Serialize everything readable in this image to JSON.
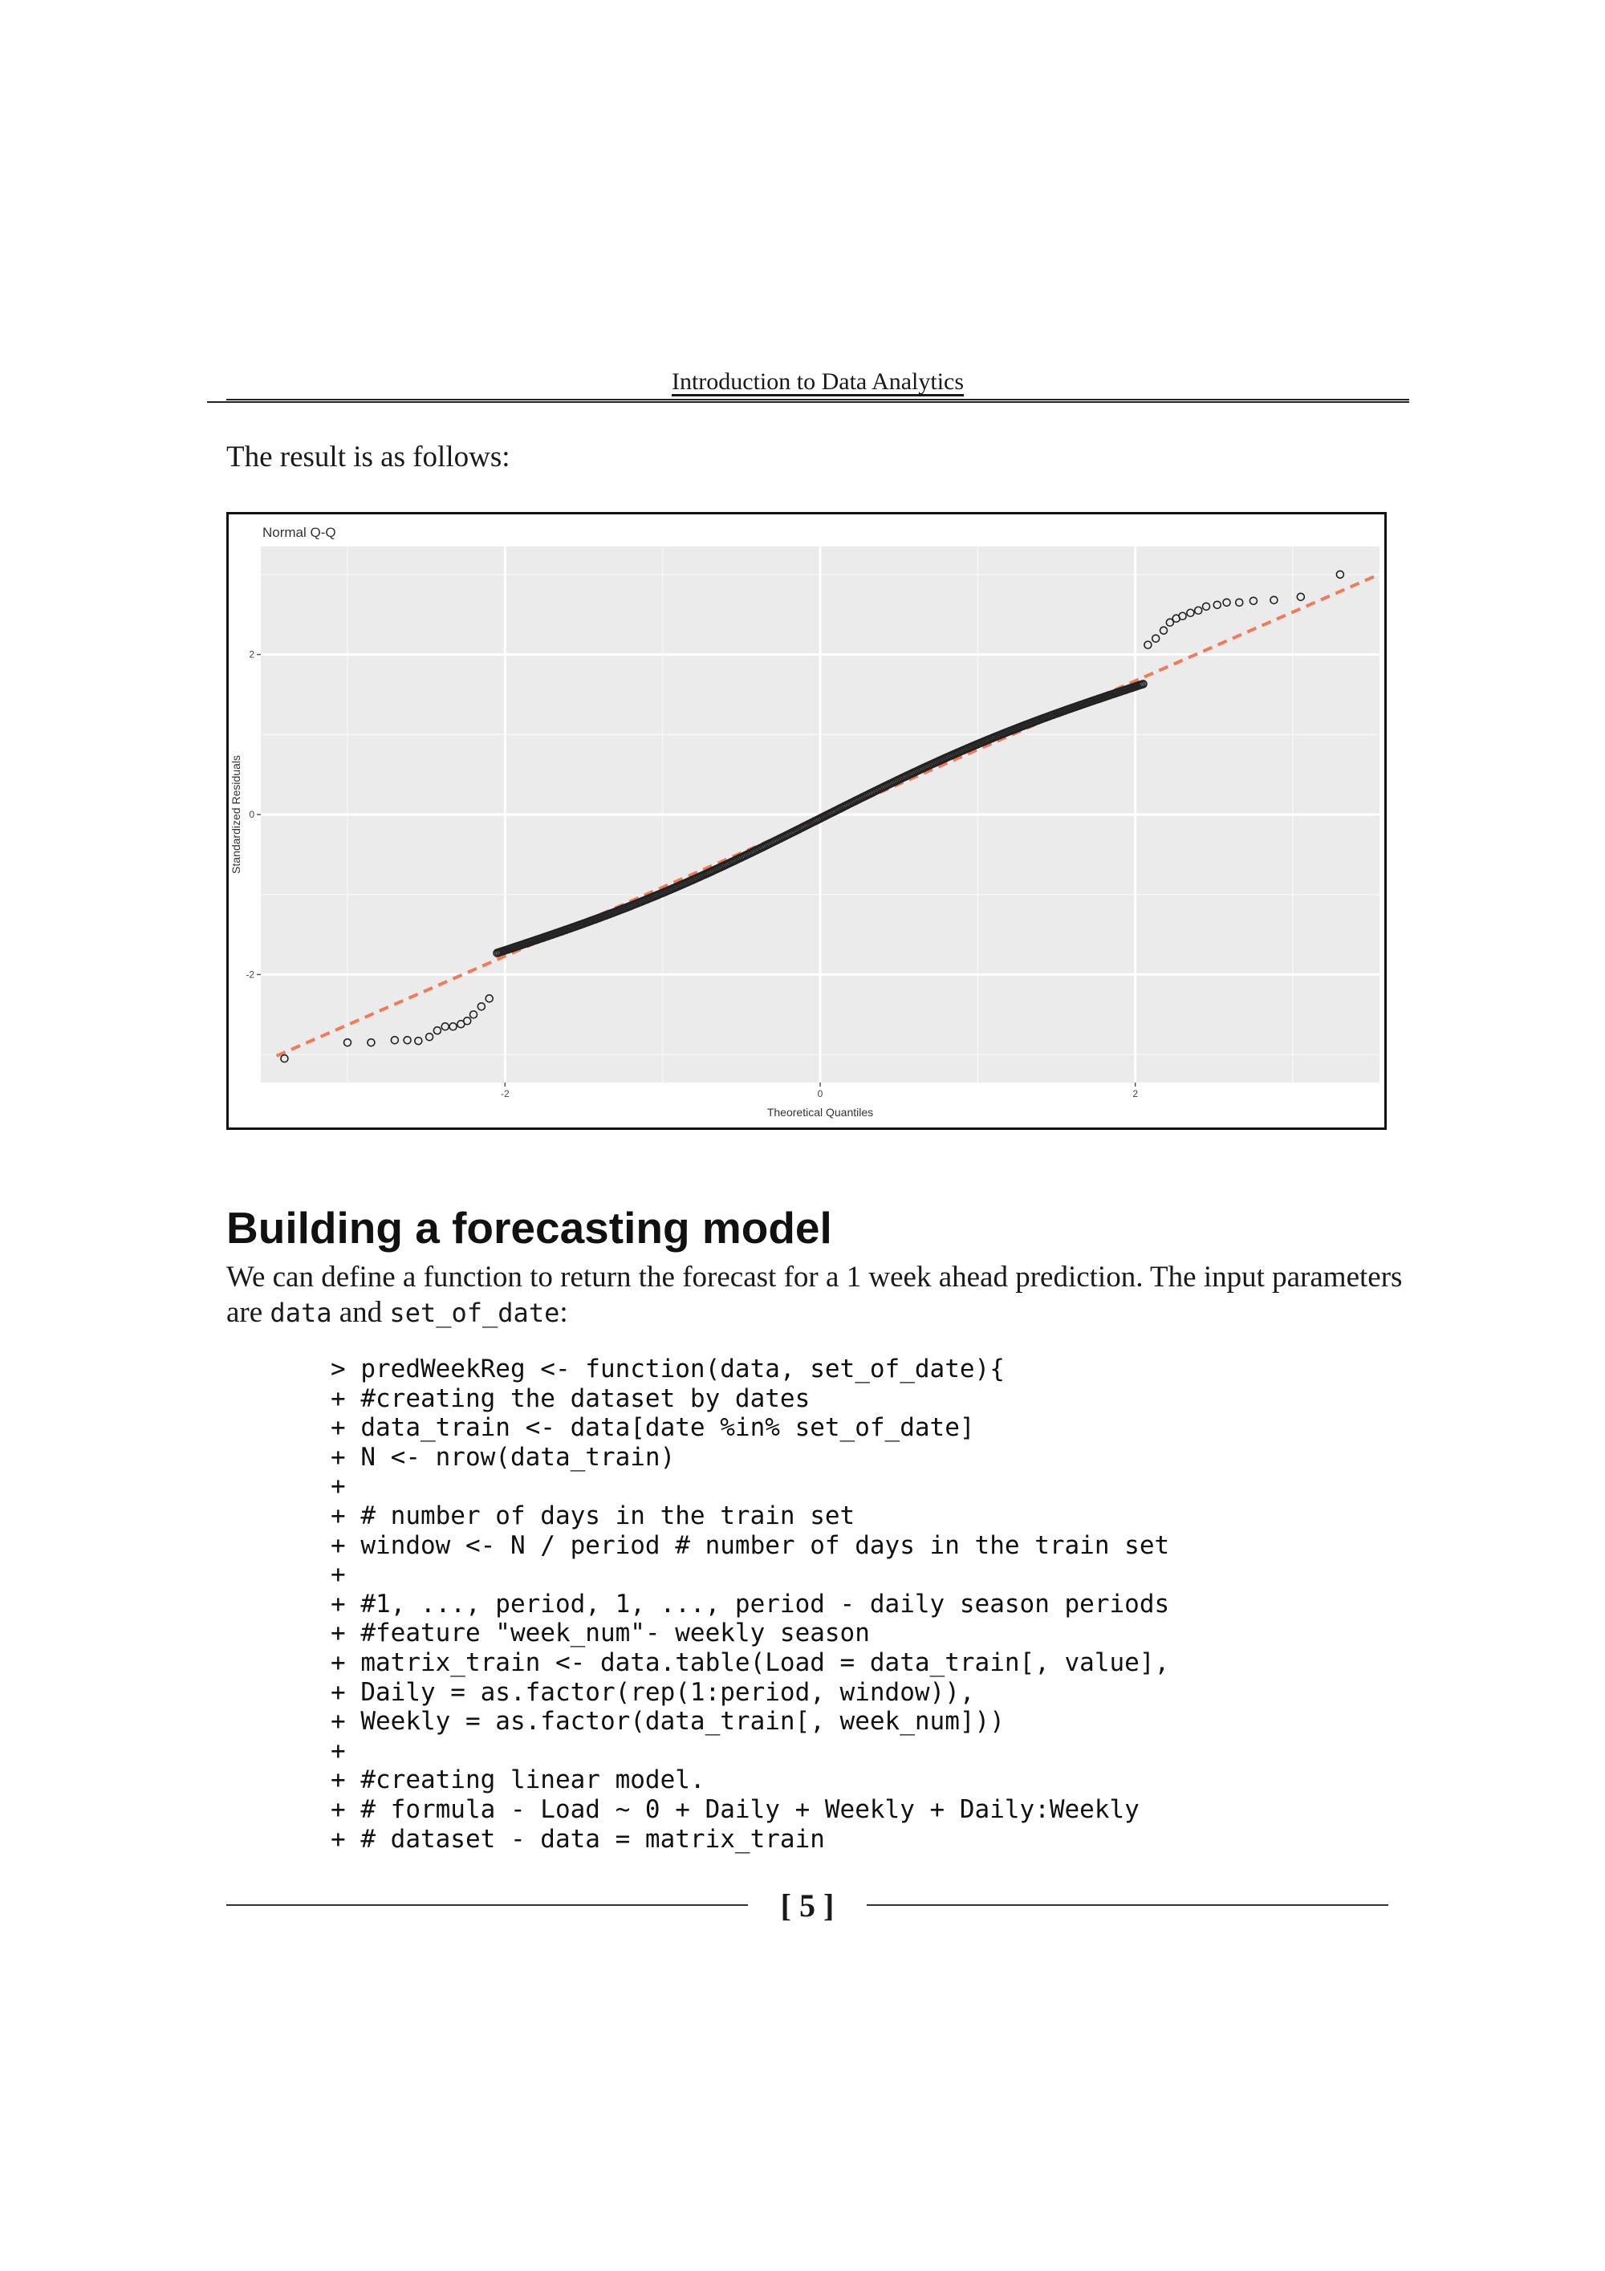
{
  "header": {
    "title": "Introduction to Data Analytics"
  },
  "intro_text": "The result is as follows:",
  "chart_data": {
    "type": "scatter",
    "title": "Normal Q-Q",
    "xlabel": "Theoretical Quantiles",
    "ylabel": "Standardized Residuals",
    "xlim": [
      -3.55,
      3.55
    ],
    "ylim": [
      -3.35,
      3.35
    ],
    "x_ticks": [
      -2,
      0,
      2
    ],
    "y_ticks": [
      -2,
      0,
      2
    ],
    "grid": true,
    "reference_line": {
      "intercept": -0.05,
      "slope": 0.86,
      "color": "#f07a5a"
    },
    "point_color": "#222222",
    "background": "#ebebeb",
    "tail_points": [
      [
        -3.4,
        -3.05
      ],
      [
        -3.0,
        -2.85
      ],
      [
        -2.85,
        -2.85
      ],
      [
        -2.7,
        -2.82
      ],
      [
        -2.62,
        -2.82
      ],
      [
        -2.55,
        -2.83
      ],
      [
        -2.48,
        -2.78
      ],
      [
        -2.43,
        -2.7
      ],
      [
        -2.38,
        -2.65
      ],
      [
        -2.33,
        -2.65
      ],
      [
        -2.28,
        -2.62
      ],
      [
        -2.24,
        -2.58
      ],
      [
        -2.2,
        -2.5
      ],
      [
        -2.15,
        -2.4
      ],
      [
        -2.1,
        -2.3
      ],
      [
        2.08,
        2.12
      ],
      [
        2.13,
        2.2
      ],
      [
        2.18,
        2.3
      ],
      [
        2.22,
        2.4
      ],
      [
        2.26,
        2.45
      ],
      [
        2.3,
        2.48
      ],
      [
        2.35,
        2.52
      ],
      [
        2.4,
        2.55
      ],
      [
        2.45,
        2.6
      ],
      [
        2.52,
        2.62
      ],
      [
        2.58,
        2.65
      ],
      [
        2.66,
        2.65
      ],
      [
        2.75,
        2.67
      ],
      [
        2.88,
        2.68
      ],
      [
        3.05,
        2.72
      ],
      [
        3.3,
        3.0
      ]
    ],
    "body_n": 420
  },
  "section_title": "Building a forecasting model",
  "paragraph": {
    "text1": "We can define a function to return the forecast for a 1 week ahead prediction. The input parameters are ",
    "code1": "data",
    "text2": " and ",
    "code2": "set_of_date",
    "text3": ":"
  },
  "code_lines": [
    "> predWeekReg <- function(data, set_of_date){",
    "+ #creating the dataset by dates",
    "+ data_train <- data[date %in% set_of_date]",
    "+ N <- nrow(data_train)",
    "+",
    "+ # number of days in the train set",
    "+ window <- N / period # number of days in the train set",
    "+",
    "+ #1, ..., period, 1, ..., period - daily season periods",
    "+ #feature \"week_num\"- weekly season",
    "+ matrix_train <- data.table(Load = data_train[, value],",
    "+ Daily = as.factor(rep(1:period, window)),",
    "+ Weekly = as.factor(data_train[, week_num]))",
    "+",
    "+ #creating linear model.",
    "+ # formula - Load ~ 0 + Daily + Weekly + Daily:Weekly",
    "+ # dataset - data = matrix_train"
  ],
  "footer": {
    "page_number": "[ 5 ]"
  }
}
